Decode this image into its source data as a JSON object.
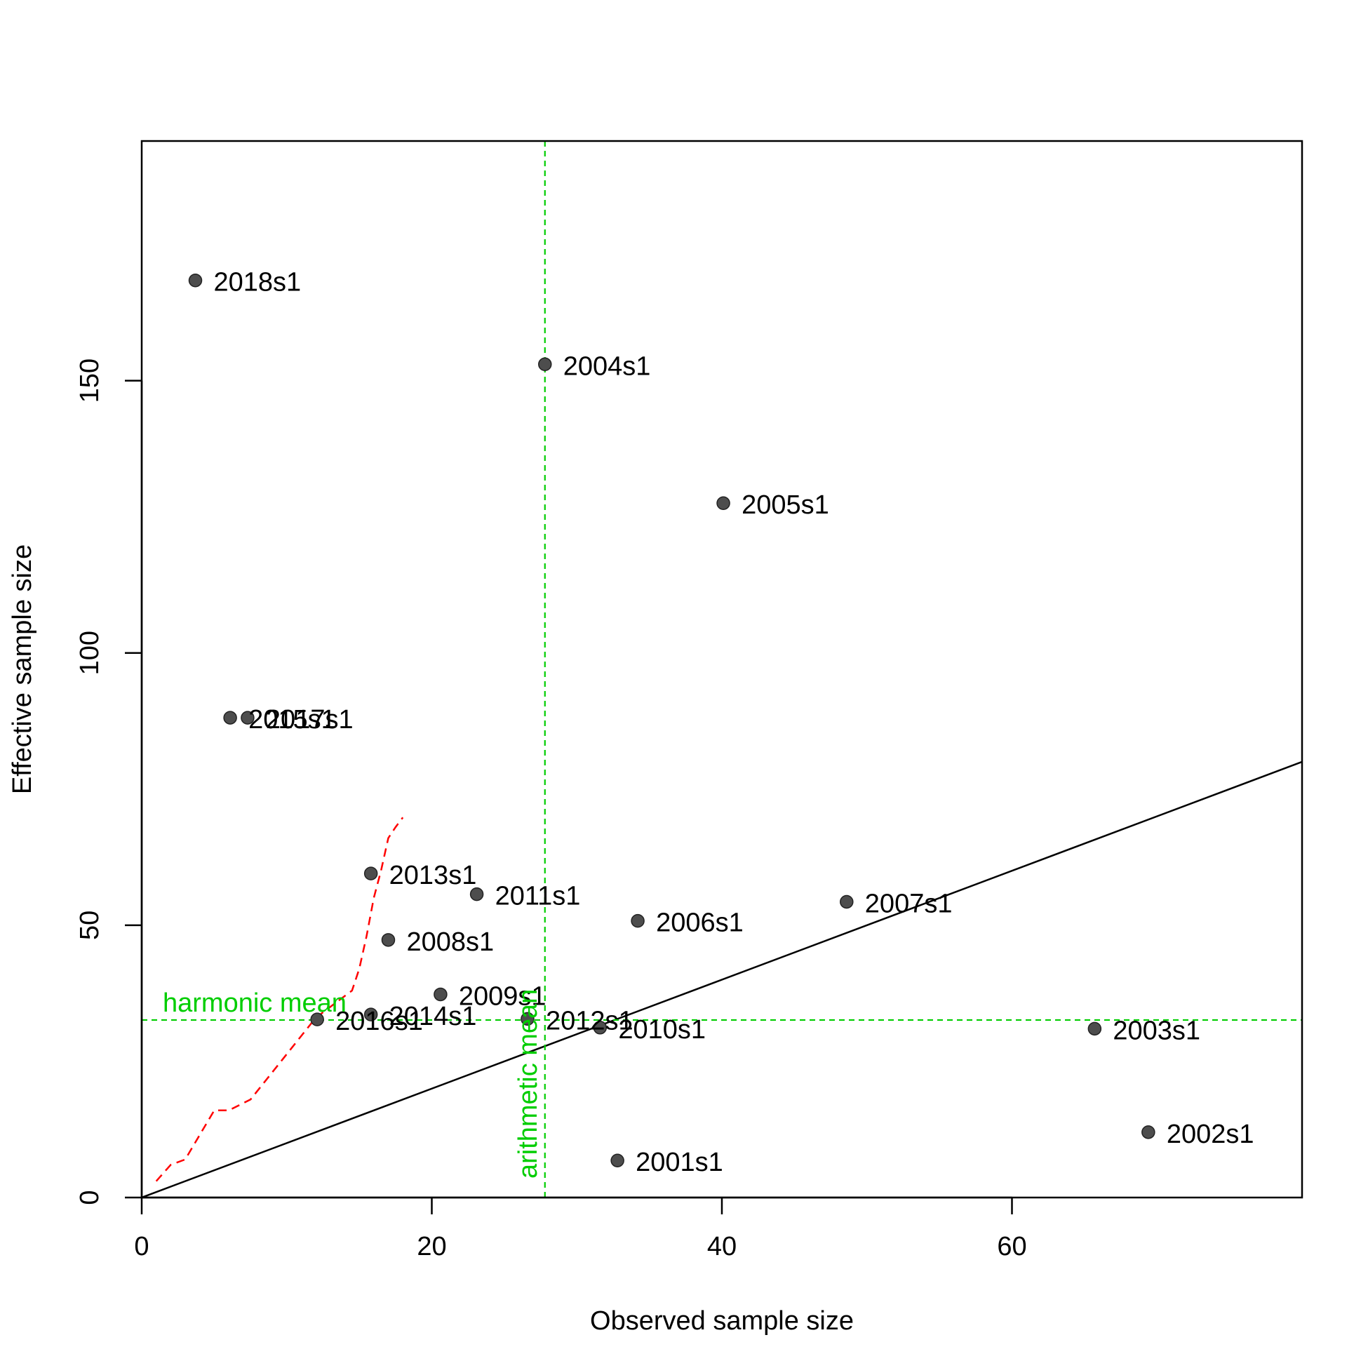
{
  "chart_data": {
    "type": "scatter",
    "title": "",
    "xlabel": "Observed sample size",
    "ylabel": "Effective sample size",
    "xlim": [
      0,
      80
    ],
    "ylim": [
      0,
      194
    ],
    "x_ticks": [
      0,
      20,
      40,
      60
    ],
    "y_ticks": [
      0,
      50,
      100,
      150
    ],
    "grid": false,
    "points": [
      {
        "label": "2001s1",
        "x": 32.8,
        "y": 6.8
      },
      {
        "label": "2002s1",
        "x": 69.4,
        "y": 12.0
      },
      {
        "label": "2003s1",
        "x": 65.7,
        "y": 31.0
      },
      {
        "label": "2004s1",
        "x": 27.8,
        "y": 153.0
      },
      {
        "label": "2005s1",
        "x": 40.1,
        "y": 127.5
      },
      {
        "label": "2006s1",
        "x": 34.2,
        "y": 50.8
      },
      {
        "label": "2007s1",
        "x": 48.6,
        "y": 54.3
      },
      {
        "label": "2008s1",
        "x": 17.0,
        "y": 47.3
      },
      {
        "label": "2009s1",
        "x": 20.6,
        "y": 37.3
      },
      {
        "label": "2010s1",
        "x": 31.6,
        "y": 31.2
      },
      {
        "label": "2011s1",
        "x": 23.1,
        "y": 55.7
      },
      {
        "label": "2012s1",
        "x": 26.6,
        "y": 32.8
      },
      {
        "label": "2013s1",
        "x": 15.8,
        "y": 59.5
      },
      {
        "label": "2014s1",
        "x": 15.8,
        "y": 33.6
      },
      {
        "label": "2015s1",
        "x": 6.1,
        "y": 88.1
      },
      {
        "label": "2016s1",
        "x": 12.1,
        "y": 32.7
      },
      {
        "label": "2017s1",
        "x": 7.3,
        "y": 88.1
      },
      {
        "label": "2018s1",
        "x": 3.7,
        "y": 168.4
      }
    ],
    "identity_line": {
      "slope": 1,
      "intercept": 0
    },
    "reference_lines": {
      "harmonic_mean": {
        "label": "harmonic mean",
        "y": 32.6,
        "color": "#00CD00"
      },
      "arithmetic_mean": {
        "label": "arithmetic mean",
        "x": 27.8,
        "color": "#00CD00"
      }
    },
    "smoother": {
      "color": "#FF0000",
      "x": [
        1.0,
        2.0,
        3.0,
        5.0,
        6.0,
        7.5,
        9.0,
        10.5,
        12.0,
        13.5,
        14.5,
        15.0,
        15.5,
        16.0,
        16.5,
        17.0,
        17.5,
        18.0
      ],
      "y": [
        3.0,
        6.0,
        7.0,
        16.0,
        16.0,
        18.0,
        23.0,
        28.0,
        33.0,
        36.0,
        38.0,
        42.0,
        48.0,
        55.0,
        60.0,
        66.0,
        68.0,
        69.8
      ]
    },
    "point_color": "#4D4D4D",
    "line_color": "#000000"
  }
}
